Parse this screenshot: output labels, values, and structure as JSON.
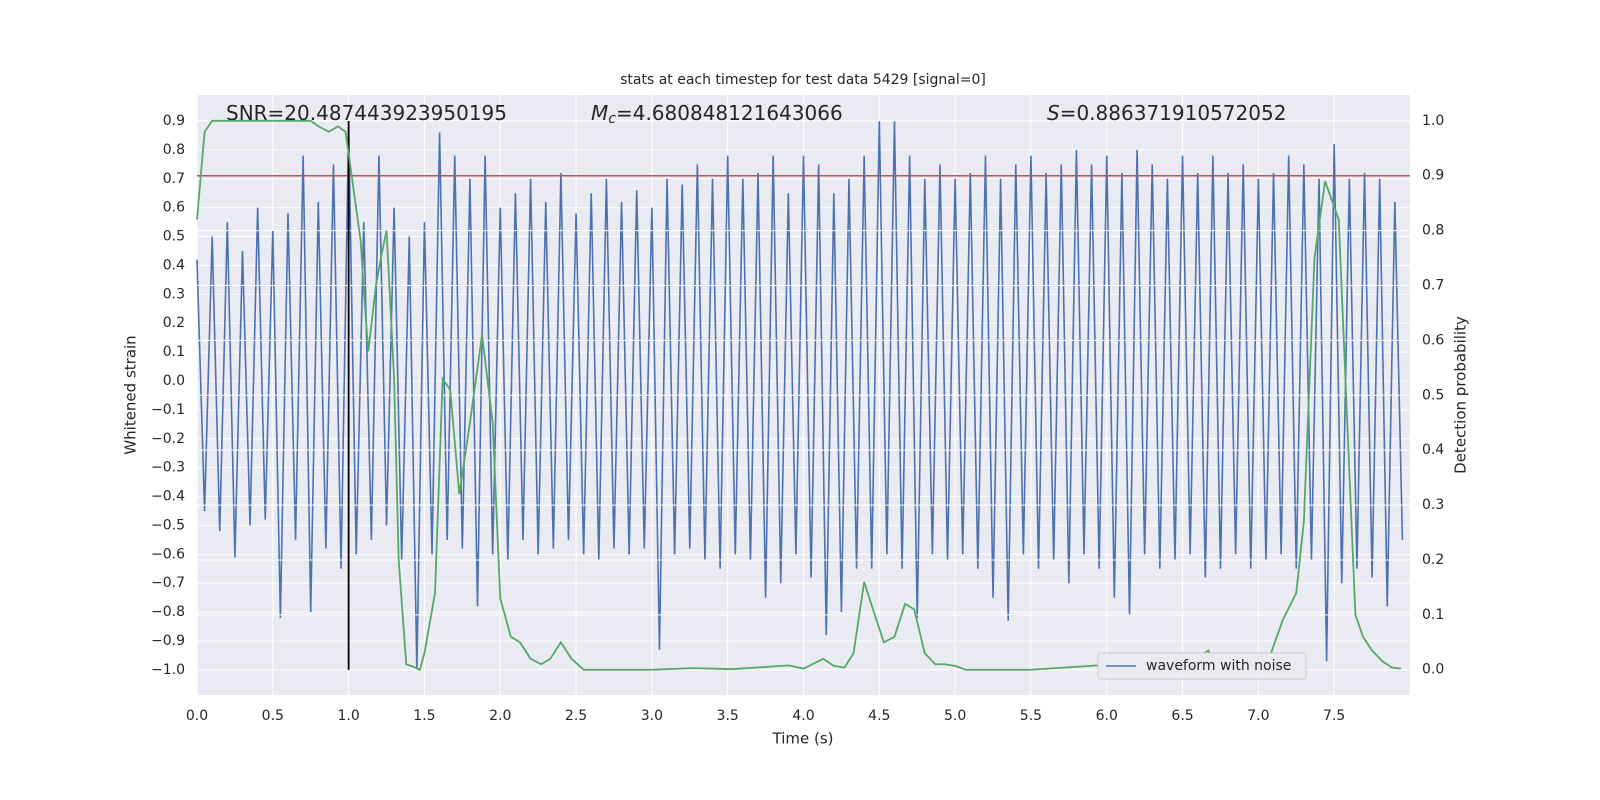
{
  "chart_data": {
    "type": "line",
    "title": "stats at each timestep for test data 5429 [signal=0]",
    "xlabel": "Time (s)",
    "ylabel": "Whitened strain",
    "y2label": "Detection probability",
    "xlim": [
      0,
      8.0
    ],
    "ylim": [
      -1.087,
      0.99
    ],
    "y2lim": [
      -0.046,
      1.047
    ],
    "grid": true,
    "legend": "lower right",
    "xticks": [
      {
        "value": 0,
        "label": "0.0"
      },
      0.5,
      {
        "value": 1,
        "label": "1.0"
      },
      1.5,
      {
        "value": 2,
        "label": "2.0"
      },
      2.5,
      {
        "value": 3,
        "label": "3.0"
      },
      3.5,
      {
        "value": 4,
        "label": "4.0"
      },
      4.5,
      {
        "value": 5,
        "label": "5.0"
      },
      5.5,
      {
        "value": 6,
        "label": "6.0"
      },
      6.5,
      {
        "value": 7,
        "label": "7.0"
      },
      7.5
    ],
    "yticks": [
      0.9,
      0.8,
      0.7,
      0.6,
      0.5,
      0.4,
      0.3,
      0.2,
      0.1,
      {
        "value": 0,
        "label": "0.0"
      },
      {
        "value": -0.1,
        "label": "−0.1"
      },
      {
        "value": -0.2,
        "label": "−0.2"
      },
      {
        "value": -0.3,
        "label": "−0.3"
      },
      {
        "value": -0.4,
        "label": "−0.4"
      },
      {
        "value": -0.5,
        "label": "−0.5"
      },
      {
        "value": -0.6,
        "label": "−0.6"
      },
      {
        "value": -0.7,
        "label": "−0.7"
      },
      {
        "value": -0.8,
        "label": "−0.8"
      },
      {
        "value": -0.9,
        "label": "−0.9"
      },
      {
        "value": -1.0,
        "label": "−1.0"
      }
    ],
    "y2ticks": [
      {
        "value": 0,
        "label": "0.0"
      },
      0.1,
      0.2,
      0.3,
      0.4,
      0.5,
      0.6,
      0.7,
      0.8,
      0.9,
      {
        "value": 1,
        "label": "1.0"
      }
    ],
    "annotations": [
      {
        "text": "SNR=20.487443923950195"
      },
      {
        "symbol": "M",
        "subscript": "c",
        "text": "=4.680848121643066"
      },
      {
        "symbol": "S",
        "text": "=0.886371910572052"
      }
    ],
    "hlines": [
      {
        "y": 0.9,
        "axis": "y2",
        "color": "#c44e52"
      }
    ],
    "vlines": [
      {
        "x": 1.0,
        "ymin": -1.0,
        "ymax": 0.9,
        "color": "#000000"
      }
    ],
    "series": [
      {
        "name": "waveform with noise",
        "color": "#4c72b0",
        "x": [
          0,
          0.05,
          0.1,
          0.15,
          0.2,
          0.25,
          0.3,
          0.35,
          0.4,
          0.45,
          0.5,
          0.55,
          0.6,
          0.65,
          0.7,
          0.75,
          0.8,
          0.85,
          0.9,
          0.95,
          1.0,
          1.05,
          1.1,
          1.15,
          1.2,
          1.25,
          1.3,
          1.35,
          1.4,
          1.45,
          1.5,
          1.55,
          1.6,
          1.65,
          1.7,
          1.75,
          1.8,
          1.85,
          1.9,
          1.95,
          2.0,
          2.05,
          2.1,
          2.15,
          2.2,
          2.25,
          2.3,
          2.35,
          2.4,
          2.45,
          2.5,
          2.55,
          2.6,
          2.65,
          2.7,
          2.75,
          2.8,
          2.85,
          2.9,
          2.95,
          3.0,
          3.05,
          3.1,
          3.15,
          3.2,
          3.25,
          3.3,
          3.35,
          3.4,
          3.45,
          3.5,
          3.55,
          3.6,
          3.65,
          3.7,
          3.75,
          3.8,
          3.85,
          3.9,
          3.95,
          4.0,
          4.05,
          4.1,
          4.15,
          4.2,
          4.25,
          4.3,
          4.35,
          4.4,
          4.45,
          4.5,
          4.55,
          4.6,
          4.65,
          4.7,
          4.75,
          4.8,
          4.85,
          4.9,
          4.95,
          5.0,
          5.05,
          5.1,
          5.15,
          5.2,
          5.25,
          5.3,
          5.35,
          5.4,
          5.45,
          5.5,
          5.55,
          5.6,
          5.65,
          5.7,
          5.75,
          5.8,
          5.85,
          5.9,
          5.95,
          6.0,
          6.05,
          6.1,
          6.15,
          6.2,
          6.25,
          6.3,
          6.35,
          6.4,
          6.45,
          6.5,
          6.55,
          6.6,
          6.65,
          6.7,
          6.75,
          6.8,
          6.85,
          6.9,
          6.95,
          7.0,
          7.05,
          7.1,
          7.15,
          7.2,
          7.25,
          7.3,
          7.35,
          7.4,
          7.45,
          7.5,
          7.55,
          7.6,
          7.65,
          7.7,
          7.75,
          7.8,
          7.85,
          7.9,
          7.95
        ],
        "values": [
          0.42,
          -0.45,
          0.5,
          -0.52,
          0.55,
          -0.61,
          0.45,
          -0.5,
          0.6,
          -0.48,
          0.52,
          -0.82,
          0.58,
          -0.55,
          0.78,
          -0.8,
          0.62,
          -0.58,
          0.75,
          -0.65,
          0.88,
          -0.6,
          0.55,
          -0.55,
          0.78,
          -0.5,
          0.6,
          -0.62,
          0.5,
          -1.0,
          0.55,
          -0.6,
          0.86,
          -0.55,
          0.78,
          -0.58,
          0.7,
          -0.78,
          0.78,
          -0.6,
          0.6,
          -0.62,
          0.65,
          -0.55,
          0.7,
          -0.6,
          0.62,
          -0.58,
          0.72,
          -0.55,
          0.58,
          -0.6,
          0.65,
          -0.62,
          0.7,
          -0.58,
          0.62,
          -0.6,
          0.66,
          -0.58,
          0.6,
          -0.93,
          0.7,
          -0.6,
          0.68,
          -0.58,
          0.75,
          -0.62,
          0.7,
          -0.65,
          0.78,
          -0.6,
          0.7,
          -0.62,
          0.72,
          -0.75,
          0.78,
          -0.7,
          0.65,
          -0.6,
          0.78,
          -0.68,
          0.75,
          -0.88,
          0.65,
          -0.8,
          0.7,
          -0.65,
          0.78,
          -0.65,
          0.9,
          -0.6,
          0.9,
          -0.65,
          0.78,
          -0.82,
          0.7,
          -0.6,
          0.75,
          -0.62,
          0.7,
          -0.6,
          0.72,
          -0.65,
          0.78,
          -0.75,
          0.7,
          -0.83,
          0.75,
          -0.6,
          0.78,
          -0.65,
          0.72,
          -0.62,
          0.75,
          -0.7,
          0.8,
          -0.6,
          0.75,
          -0.65,
          0.78,
          -0.75,
          0.72,
          -0.81,
          0.8,
          -0.6,
          0.75,
          -0.65,
          0.7,
          -0.62,
          0.78,
          -0.6,
          0.72,
          -0.68,
          0.78,
          -0.65,
          0.72,
          -0.6,
          0.75,
          -0.65,
          0.7,
          -0.62,
          0.72,
          -0.6,
          0.78,
          -0.65,
          0.75,
          -0.62,
          0.7,
          -0.97,
          0.82,
          -0.7,
          0.7,
          -0.65,
          0.72,
          -0.68,
          0.7,
          -0.78,
          0.62,
          -0.55
        ]
      },
      {
        "color": "#55a868",
        "axis": "y2",
        "x": [
          0,
          0.05,
          0.1,
          0.15,
          0.3,
          0.5,
          0.75,
          0.8,
          0.87,
          0.93,
          0.98,
          1.03,
          1.08,
          1.1,
          1.13,
          1.18,
          1.22,
          1.25,
          1.3,
          1.33,
          1.38,
          1.43,
          1.47,
          1.5,
          1.57,
          1.62,
          1.67,
          1.73,
          1.8,
          1.88,
          1.95,
          2.0,
          2.07,
          2.13,
          2.2,
          2.27,
          2.33,
          2.4,
          2.47,
          2.55,
          3.0,
          3.27,
          3.53,
          3.9,
          4.0,
          4.13,
          4.2,
          4.27,
          4.33,
          4.4,
          4.47,
          4.53,
          4.6,
          4.67,
          4.73,
          4.8,
          4.87,
          4.93,
          5.0,
          5.07,
          5.5,
          6.33,
          6.4,
          6.53,
          6.67,
          6.73,
          6.8,
          7.07,
          7.16,
          7.25,
          7.3,
          7.37,
          7.44,
          7.53,
          7.6,
          7.64,
          7.69,
          7.75,
          7.82,
          7.88,
          7.94
        ],
        "values": [
          0.82,
          0.98,
          1.0,
          1.0,
          1.0,
          1.0,
          1.0,
          0.99,
          0.98,
          0.99,
          0.98,
          0.88,
          0.78,
          0.69,
          0.58,
          0.7,
          0.76,
          0.8,
          0.53,
          0.2,
          0.01,
          0.005,
          0.0,
          0.03,
          0.14,
          0.53,
          0.51,
          0.32,
          0.45,
          0.61,
          0.45,
          0.13,
          0.06,
          0.05,
          0.02,
          0.01,
          0.02,
          0.05,
          0.02,
          0.0,
          0.0,
          0.003,
          0.001,
          0.008,
          0.002,
          0.02,
          0.007,
          0.004,
          0.03,
          0.16,
          0.1,
          0.05,
          0.06,
          0.12,
          0.11,
          0.03,
          0.01,
          0.01,
          0.007,
          0.0,
          0.0,
          0.015,
          0.024,
          0.01,
          0.035,
          0.005,
          0.0,
          0.02,
          0.09,
          0.14,
          0.27,
          0.75,
          0.89,
          0.82,
          0.36,
          0.1,
          0.06,
          0.035,
          0.015,
          0.004,
          0.002
        ]
      }
    ]
  }
}
